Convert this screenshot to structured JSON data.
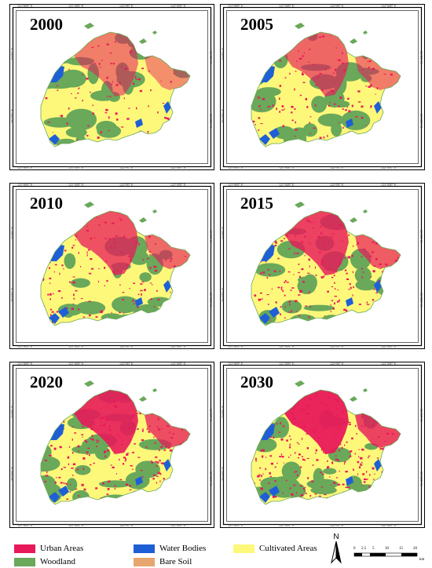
{
  "panels": [
    {
      "year": "2000"
    },
    {
      "year": "2005"
    },
    {
      "year": "2010"
    },
    {
      "year": "2015"
    },
    {
      "year": "2020"
    },
    {
      "year": "2030"
    }
  ],
  "ticks": {
    "top": [
      "121°00'0\" E",
      "121°30'0\" E",
      "122°0'0\" E",
      "122°30'0\" E"
    ],
    "bottom": [
      "121°00'0\" E",
      "121°30'0\" E",
      "122°0'0\" E",
      "122°30'0\" E"
    ],
    "left": [
      "31°0'0\" N",
      "30°30'0\" N"
    ],
    "right": [
      "31°0'0\" N",
      "30°30'0\" N"
    ]
  },
  "legend": {
    "items": [
      {
        "label": "Urban Areas",
        "color": "#e8195a"
      },
      {
        "label": "Water Bodies",
        "color": "#1f5fd6"
      },
      {
        "label": "Cultivated Areas",
        "color": "#fdf87a"
      },
      {
        "label": "Woodland",
        "color": "#6aa85a"
      },
      {
        "label": "Bare Soil",
        "color": "#e7a66f"
      }
    ]
  },
  "north_arrow": {
    "label": "N"
  },
  "scale_bar": {
    "labels": [
      "0",
      "2.5",
      "5",
      "10",
      "15",
      "20"
    ],
    "unit": "km"
  }
}
